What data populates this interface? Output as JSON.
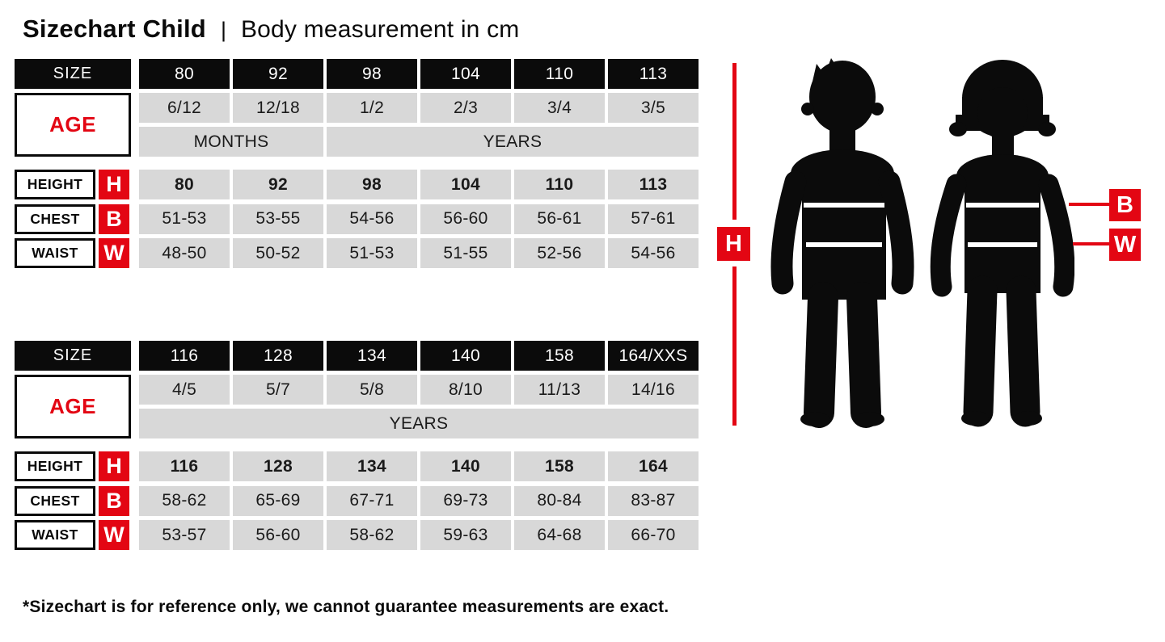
{
  "page": {
    "title_main": "Sizechart Child",
    "title_separator": "|",
    "title_sub": "Body measurement in cm",
    "footnote": "*Sizechart is for reference only, we cannot guarantee measurements are exact."
  },
  "colors": {
    "accent_red": "#e30613",
    "header_black": "#0b0b0b",
    "cell_gray": "#d8d8d8"
  },
  "figure": {
    "height_marker": "H",
    "chest_marker": "B",
    "waist_marker": "W",
    "left_icon": "boy-silhouette",
    "right_icon": "girl-silhouette"
  },
  "tables": [
    {
      "size_label": "SIZE",
      "age_label": "AGE",
      "sizes": [
        "80",
        "92",
        "98",
        "104",
        "110",
        "113"
      ],
      "ages": [
        "6/12",
        "12/18",
        "1/2",
        "2/3",
        "3/4",
        "3/5"
      ],
      "age_units": [
        {
          "label": "MONTHS",
          "span": 2
        },
        {
          "label": "YEARS",
          "span": 4
        }
      ],
      "rows": [
        {
          "label": "HEIGHT",
          "marker": "H",
          "bold": true,
          "values": [
            "80",
            "92",
            "98",
            "104",
            "110",
            "113"
          ]
        },
        {
          "label": "CHEST",
          "marker": "B",
          "bold": false,
          "values": [
            "51-53",
            "53-55",
            "54-56",
            "56-60",
            "56-61",
            "57-61"
          ]
        },
        {
          "label": "WAIST",
          "marker": "W",
          "bold": false,
          "values": [
            "48-50",
            "50-52",
            "51-53",
            "51-55",
            "52-56",
            "54-56"
          ]
        }
      ]
    },
    {
      "size_label": "SIZE",
      "age_label": "AGE",
      "sizes": [
        "116",
        "128",
        "134",
        "140",
        "158",
        "164/XXS"
      ],
      "ages": [
        "4/5",
        "5/7",
        "5/8",
        "8/10",
        "11/13",
        "14/16"
      ],
      "age_units": [
        {
          "label": "YEARS",
          "span": 6
        }
      ],
      "rows": [
        {
          "label": "HEIGHT",
          "marker": "H",
          "bold": true,
          "values": [
            "116",
            "128",
            "134",
            "140",
            "158",
            "164"
          ]
        },
        {
          "label": "CHEST",
          "marker": "B",
          "bold": false,
          "values": [
            "58-62",
            "65-69",
            "67-71",
            "69-73",
            "80-84",
            "83-87"
          ]
        },
        {
          "label": "WAIST",
          "marker": "W",
          "bold": false,
          "values": [
            "53-57",
            "56-60",
            "58-62",
            "59-63",
            "64-68",
            "66-70"
          ]
        }
      ]
    }
  ]
}
